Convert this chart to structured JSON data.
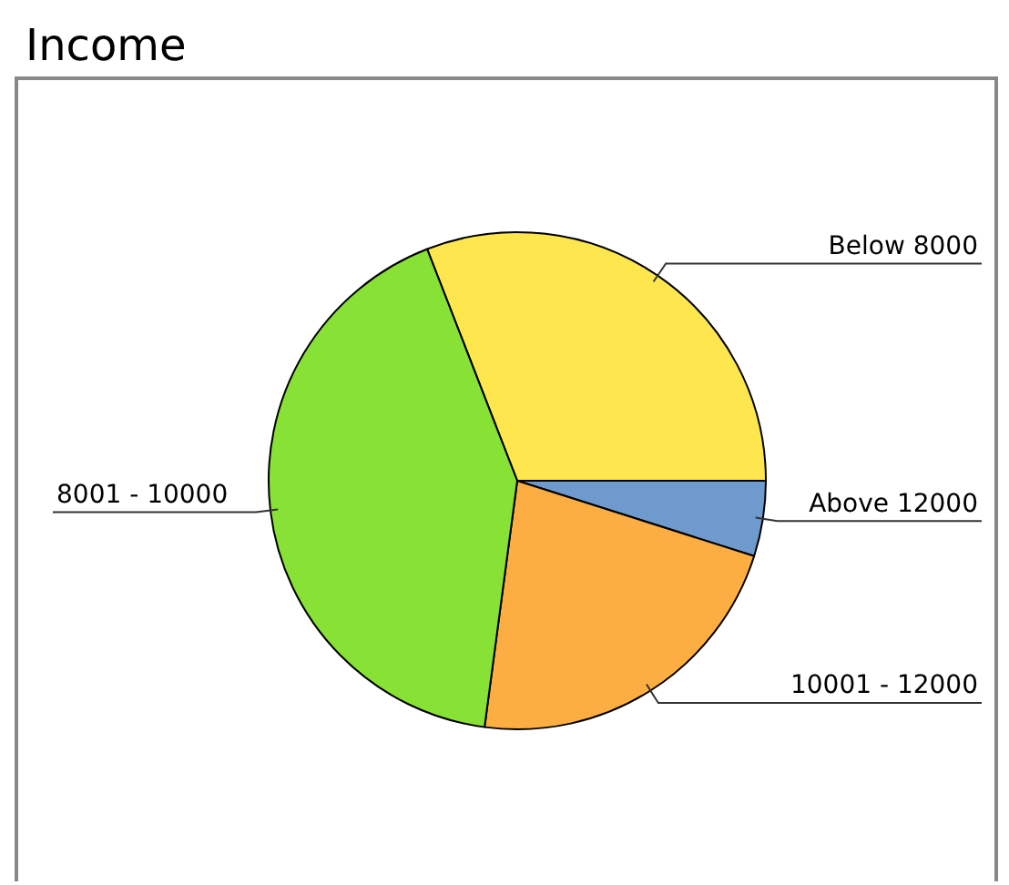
{
  "chart_data": {
    "type": "pie",
    "title": "Income",
    "categories": [
      "Below 8000",
      "Above 12000",
      "10001 - 12000",
      "8001 - 10000"
    ],
    "values": [
      30.9,
      4.9,
      22.2,
      42.0
    ],
    "colors": [
      "#fee74e",
      "#6e9acd",
      "#fdae42",
      "#88e236"
    ],
    "legend": false
  }
}
